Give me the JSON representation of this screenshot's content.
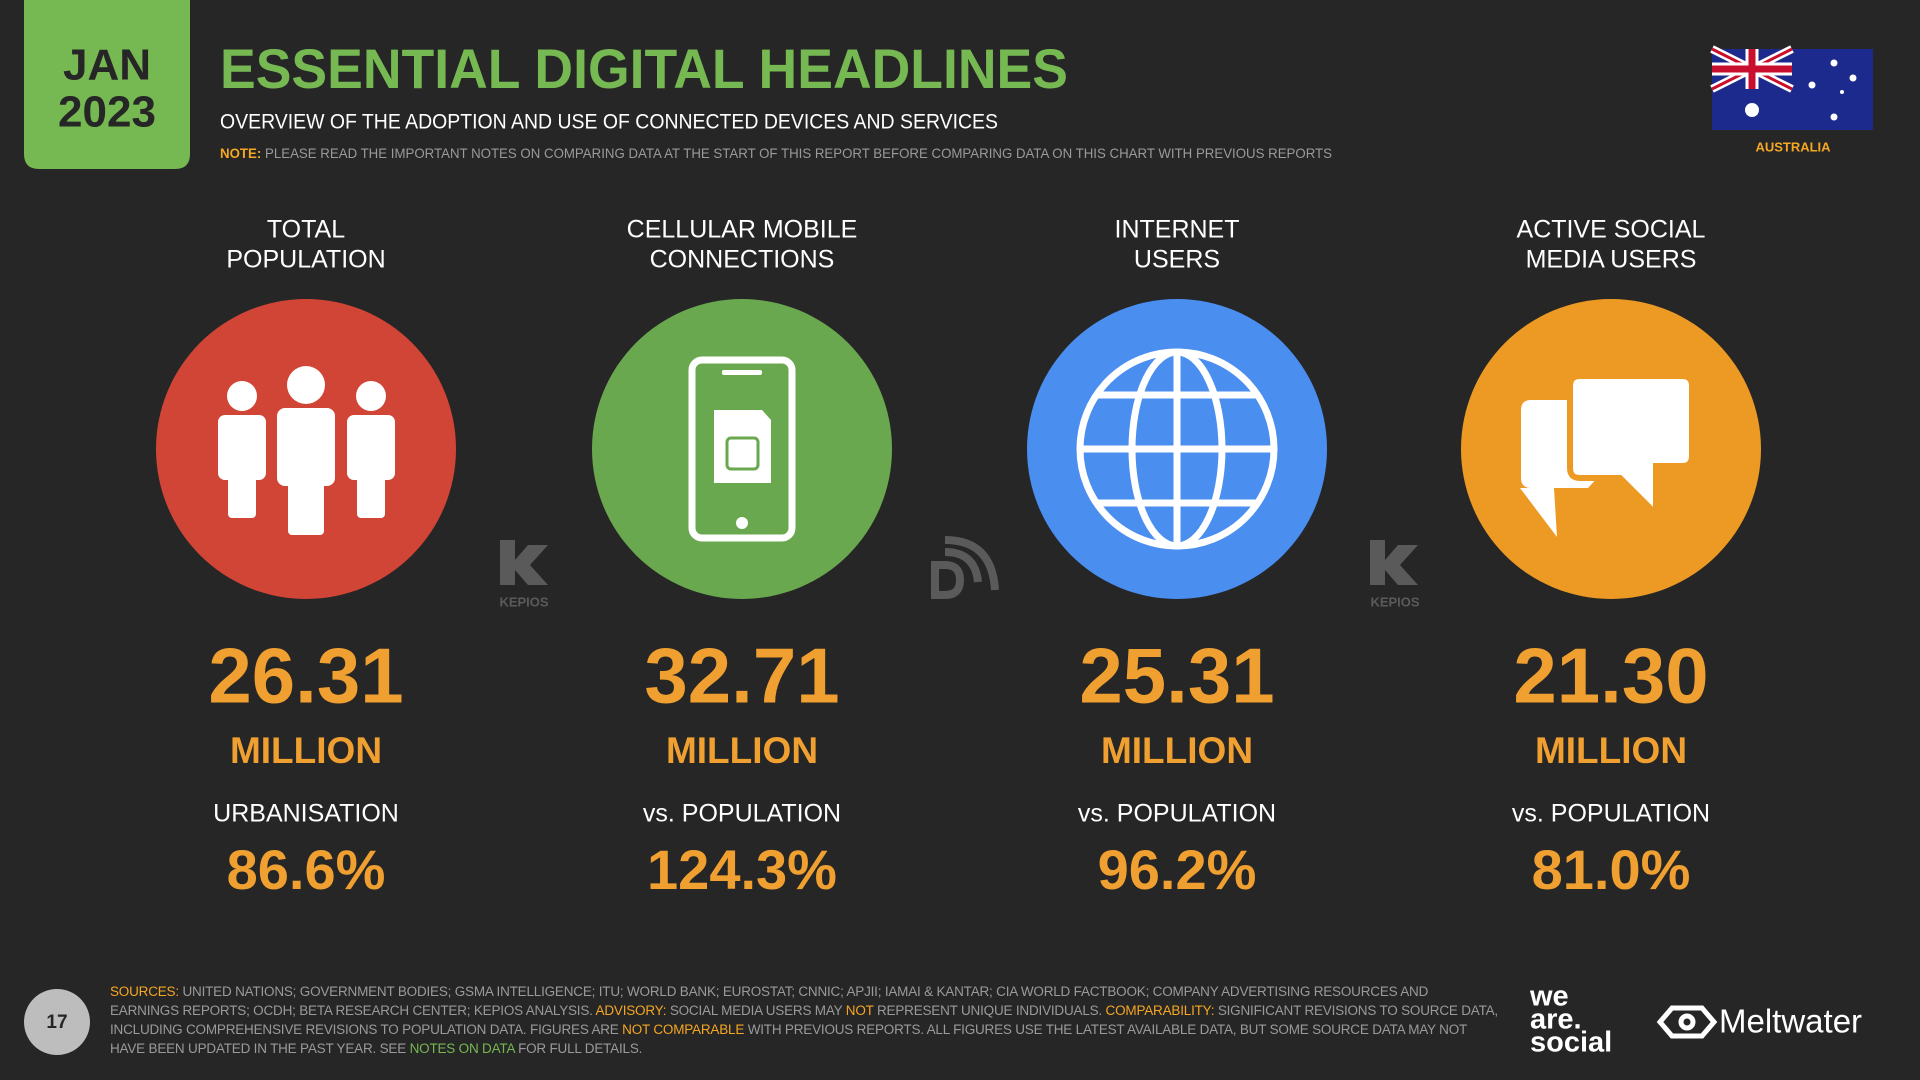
{
  "badge": {
    "month": "JAN",
    "year": "2023"
  },
  "header": {
    "title": "ESSENTIAL DIGITAL HEADLINES",
    "subtitle": "OVERVIEW OF THE ADOPTION AND USE OF CONNECTED DEVICES AND SERVICES",
    "note_label": "NOTE:",
    "note": "PLEASE READ THE IMPORTANT NOTES ON COMPARING DATA AT THE START OF THIS REPORT BEFORE COMPARING DATA ON THIS CHART WITH PREVIOUS REPORTS"
  },
  "country": "AUSTRALIA",
  "stats": [
    {
      "label_lines": [
        "TOTAL",
        "POPULATION"
      ],
      "value": "26.31",
      "unit": "MILLION",
      "sub_label": "URBANISATION",
      "sub_value": "86.6%",
      "color": "#d14536"
    },
    {
      "label_lines": [
        "CELLULAR MOBILE",
        "CONNECTIONS"
      ],
      "value": "32.71",
      "unit": "MILLION",
      "sub_label": "vs. POPULATION",
      "sub_value": "124.3%",
      "color": "#6aa84f"
    },
    {
      "label_lines": [
        "INTERNET",
        "USERS"
      ],
      "value": "25.31",
      "unit": "MILLION",
      "sub_label": "vs. POPULATION",
      "sub_value": "96.2%",
      "color": "#4a8ef0"
    },
    {
      "label_lines": [
        "ACTIVE SOCIAL",
        "MEDIA USERS"
      ],
      "value": "21.30",
      "unit": "MILLION",
      "sub_label": "vs. POPULATION",
      "sub_value": "81.0%",
      "color": "#ec9a23"
    }
  ],
  "partner_logos": [
    "KEPIOS",
    "KEPIOS"
  ],
  "page_number": "17",
  "footer": {
    "segments": [
      {
        "text": "SOURCES:",
        "color": "#f5a623"
      },
      {
        "text": " UNITED NATIONS; GOVERNMENT BODIES; GSMA INTELLIGENCE; ITU; WORLD BANK; EUROSTAT; CNNIC; APJII; IAMAI & KANTAR; CIA WORLD FACTBOOK; COMPANY ADVERTISING RESOURCES AND EARNINGS REPORTS; OCDH; BETA RESEARCH CENTER; KEPIOS ANALYSIS. ",
        "color": "#9a9a9a"
      },
      {
        "text": "ADVISORY:",
        "color": "#f5a623"
      },
      {
        "text": " SOCIAL MEDIA USERS MAY ",
        "color": "#9a9a9a"
      },
      {
        "text": "NOT",
        "color": "#f5a623"
      },
      {
        "text": " REPRESENT UNIQUE INDIVIDUALS. ",
        "color": "#9a9a9a"
      },
      {
        "text": "COMPARABILITY:",
        "color": "#f5a623"
      },
      {
        "text": " SIGNIFICANT REVISIONS TO SOURCE DATA, INCLUDING COMPREHENSIVE REVISIONS TO POPULATION DATA. FIGURES ARE ",
        "color": "#9a9a9a"
      },
      {
        "text": "NOT COMPARABLE",
        "color": "#f5a623"
      },
      {
        "text": " WITH PREVIOUS REPORTS. ALL FIGURES USE THE LATEST AVAILABLE DATA, BUT SOME SOURCE DATA MAY NOT HAVE BEEN UPDATED IN THE PAST YEAR. SEE ",
        "color": "#9a9a9a"
      },
      {
        "text": "NOTES ON DATA",
        "color": "#76b852"
      },
      {
        "text": " FOR FULL DETAILS.",
        "color": "#9a9a9a"
      }
    ]
  },
  "brands": {
    "we_are_social_lines": [
      "we",
      "are.",
      "social"
    ],
    "meltwater": "Meltwater"
  }
}
